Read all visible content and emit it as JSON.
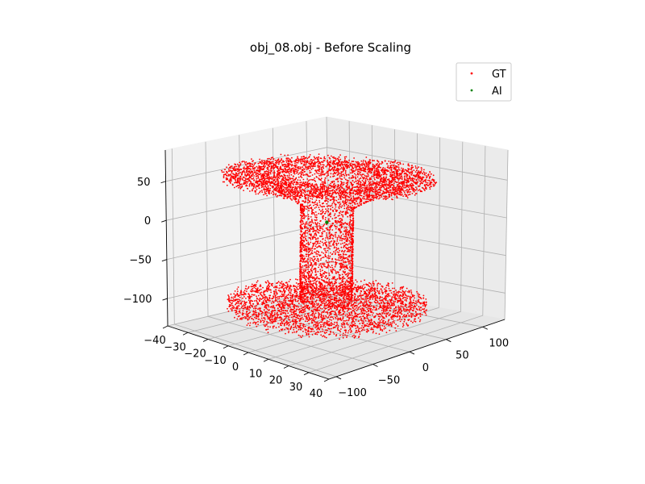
{
  "chart_data": {
    "type": "scatter",
    "title": "obj_08.obj - Before Scaling",
    "view": "3d",
    "grid": true,
    "legend_position": "top-right",
    "axes": {
      "x": {
        "range": [
          -40,
          40
        ],
        "ticks": [
          -40,
          -30,
          -20,
          -10,
          0,
          10,
          20,
          30,
          40
        ],
        "tick_labels": [
          "−40",
          "−30",
          "−20",
          "−10",
          "0",
          "10",
          "20",
          "30",
          "40"
        ]
      },
      "y": {
        "range": [
          -110,
          130
        ],
        "ticks": [
          -100,
          -50,
          0,
          50,
          100
        ],
        "tick_labels": [
          "−100",
          "−50",
          "0",
          "50",
          "100"
        ]
      },
      "z": {
        "range": [
          -135,
          90
        ],
        "ticks": [
          -100,
          -50,
          0,
          50
        ],
        "tick_labels": [
          "−100",
          "−50",
          "0",
          "50"
        ]
      }
    },
    "series": [
      {
        "name": "GT",
        "color": "#ff0000",
        "shape": "hourglass point cloud: top disk, narrow stem, bottom plate",
        "top_disk": {
          "z": 55,
          "radius_y": 100,
          "radius_x": 38
        },
        "stem": {
          "z_range": [
            -100,
            50
          ],
          "radius_y": 22,
          "radius_x": 10
        },
        "bottom_plate": {
          "z": -105,
          "radius_y": 95,
          "radius_x": 36
        },
        "approx_point_count": 9000
      },
      {
        "name": "AI",
        "color": "#008000",
        "points": [
          [
            0,
            0,
            0
          ]
        ]
      }
    ]
  }
}
